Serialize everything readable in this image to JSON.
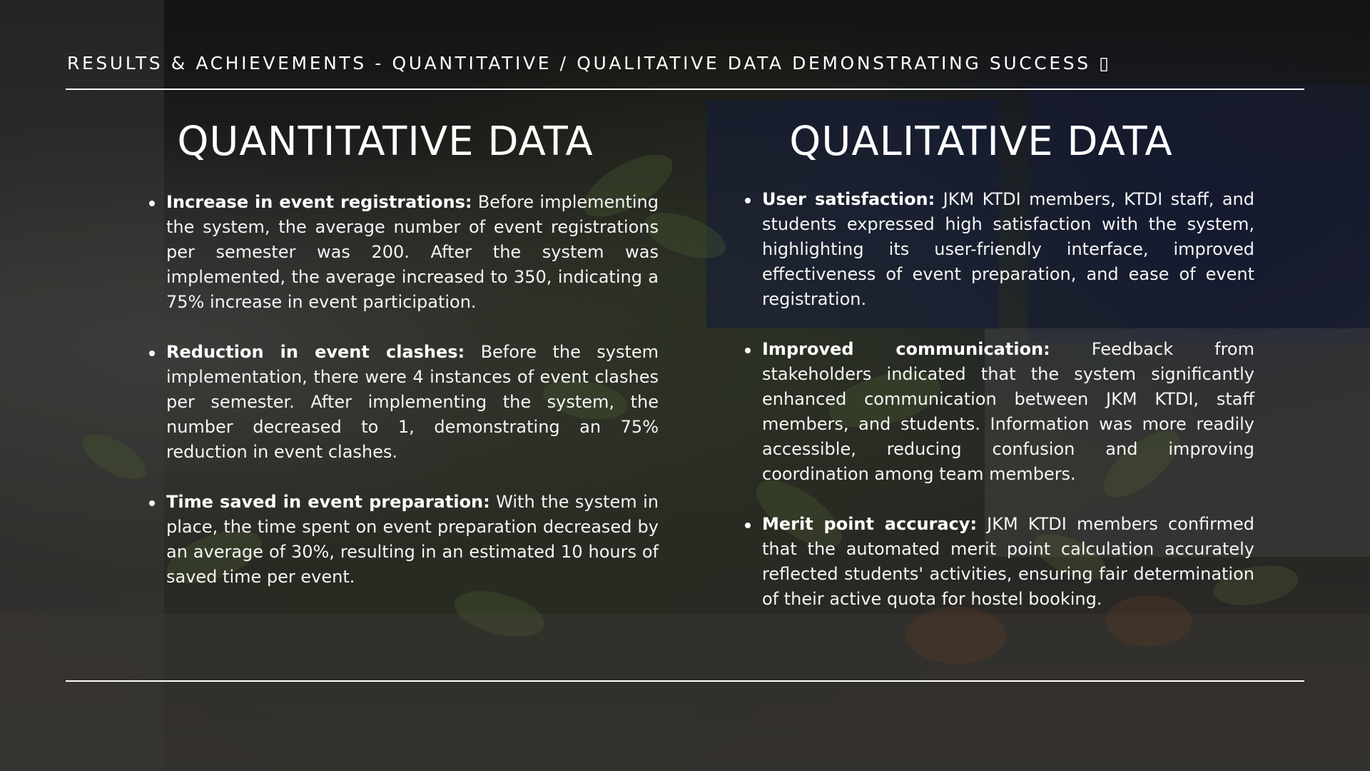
{
  "header": {
    "title": "RESULTS & ACHIEVEMENTS - QUANTITATIVE / QUALITATIVE DATA DEMONSTRATING SUCCESS ▯"
  },
  "quantitative": {
    "title": "QUANTITATIVE DATA",
    "items": [
      {
        "lead": "Increase in event registrations:",
        "body": " Before implementing the system, the average number of event registrations per semester was 200. After the system was implemented, the average increased to 350, indicating a 75% increase in event participation."
      },
      {
        "lead": "Reduction in event clashes:",
        "body": " Before the system implementation, there were 4 instances of event clashes per semester. After implementing the system, the number decreased to 1, demonstrating an 75% reduction in event clashes."
      },
      {
        "lead": "Time saved in event preparation:",
        "body": " With the system in place, the time spent on event preparation decreased by an average of 30%, resulting in an estimated 10 hours of saved time per event."
      }
    ]
  },
  "qualitative": {
    "title": "QUALITATIVE DATA",
    "items": [
      {
        "lead": "User satisfaction:",
        "body": " JKM KTDI members, KTDI staff, and students expressed high satisfaction with the system, highlighting its user-friendly interface, improved effectiveness of event preparation, and ease of event registration."
      },
      {
        "lead": "Improved communication:",
        "body": " Feedback from stakeholders indicated that the system significantly enhanced communication between JKM KTDI, staff members, and students. Information was more readily accessible, reducing confusion and improving coordination among team members."
      },
      {
        "lead": "Merit point accuracy:",
        "body": " JKM KTDI members confirmed that the automated merit point calculation accurately reflected students' activities, ensuring fair determination of their active quota for hostel booking."
      }
    ]
  }
}
